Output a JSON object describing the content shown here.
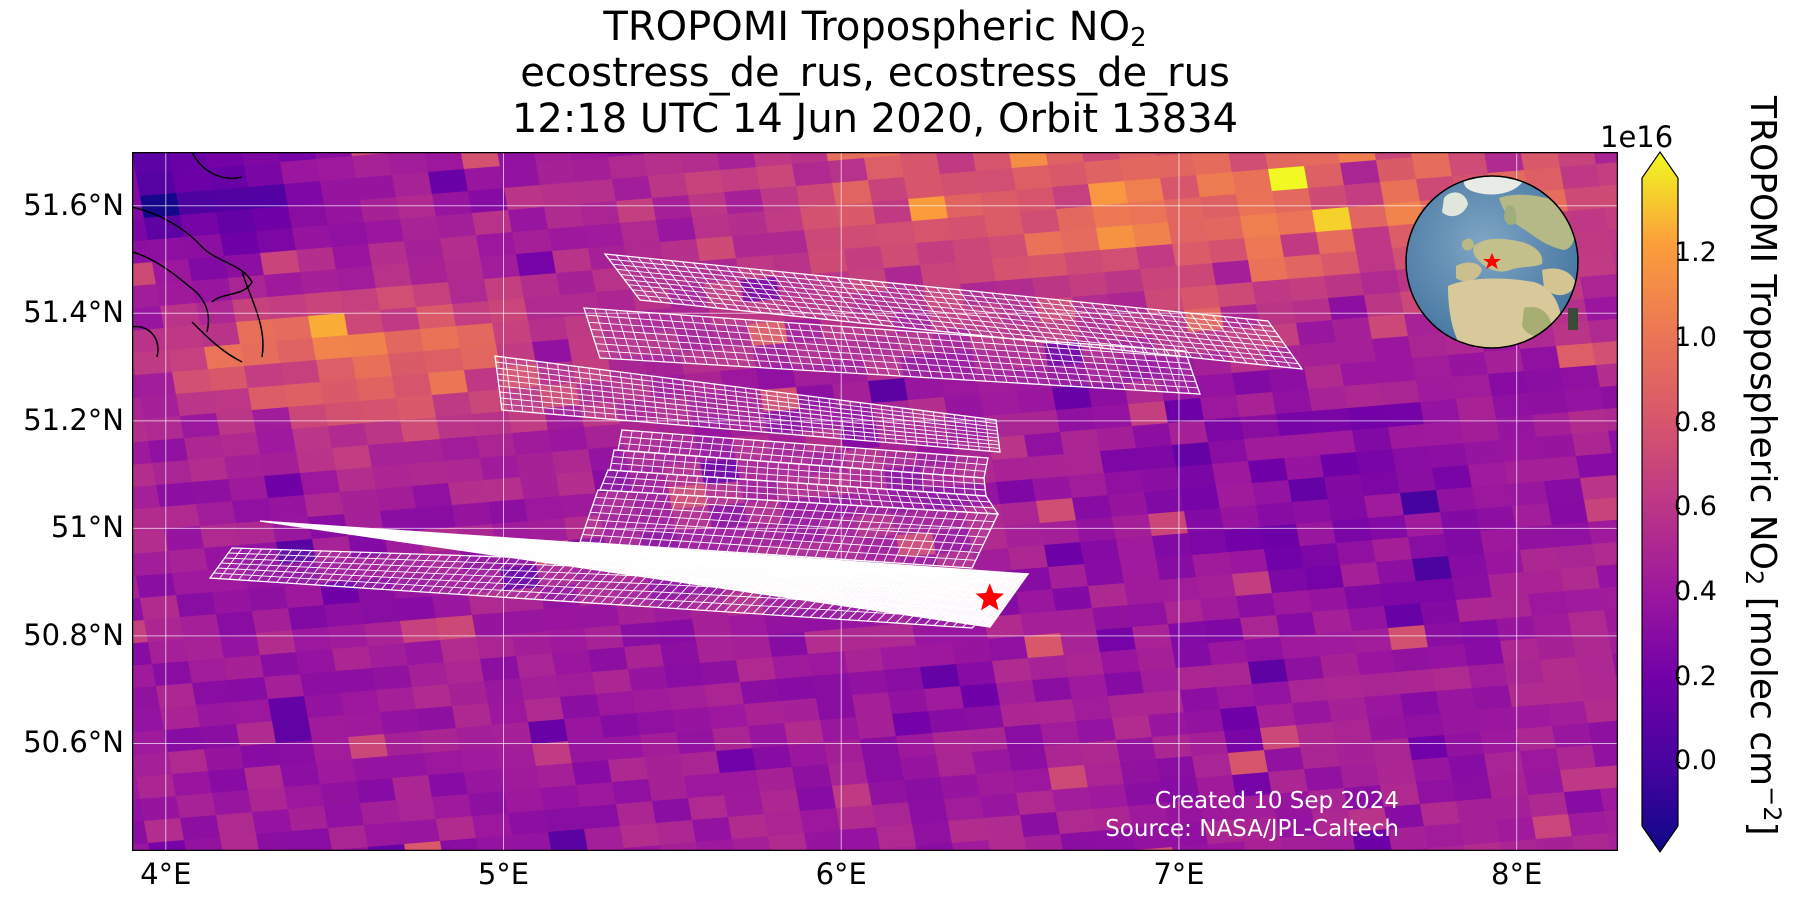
{
  "title": {
    "line1_prefix": "TROPOMI Tropospheric NO",
    "line1_sub": "2",
    "line2": "ecostress_de_rus, ecostress_de_rus",
    "line3": "12:18 UTC 14 Jun 2020, Orbit 13834"
  },
  "map": {
    "lon_ticks": [
      "4°E",
      "5°E",
      "6°E",
      "7°E",
      "8°E"
    ],
    "lat_ticks": [
      "51.6°N",
      "51.4°N",
      "51.2°N",
      "51°N",
      "50.8°N",
      "50.6°N"
    ],
    "lon_range": [
      3.9,
      8.3
    ],
    "lat_range": [
      50.4,
      51.7
    ],
    "site_marker": {
      "lon": 6.44,
      "lat": 50.87,
      "color": "#ff0000",
      "icon": "star-icon"
    },
    "grid": true
  },
  "colorbar": {
    "label_prefix": "TROPOMI Tropospheric NO",
    "label_sub": "2",
    "label_suffix": " [molec cm",
    "label_sup": "−2",
    "label_end": "]",
    "exponent": "1e16",
    "ticks": [
      "1.2",
      "1.0",
      "0.8",
      "0.6",
      "0.4",
      "0.2",
      "0.0"
    ],
    "tick_values": [
      1.2,
      1.0,
      0.8,
      0.6,
      0.4,
      0.2,
      0.0
    ],
    "range": [
      -0.15,
      1.38
    ],
    "colormap": "plasma"
  },
  "credits": {
    "line1": "Created 10 Sep 2024",
    "line2": "Source: NASA/JPL-Caltech"
  }
}
